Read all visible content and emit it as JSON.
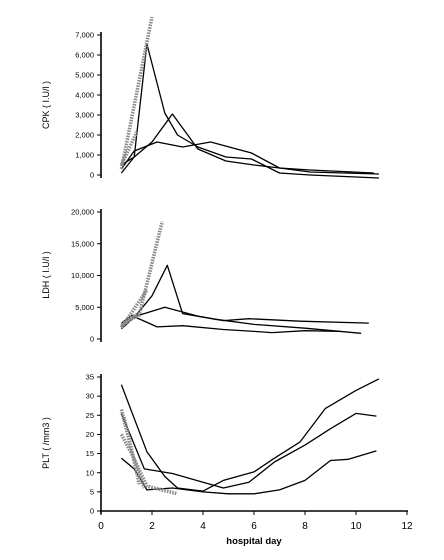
{
  "chart_data": [
    {
      "type": "line",
      "panel": "top",
      "ylabel": "CPK ( I.U/l )",
      "ylim": [
        0,
        7000
      ],
      "yticks": [
        0,
        1000,
        2000,
        3000,
        4000,
        5000,
        6000,
        7000
      ],
      "ytick_labels": [
        "0",
        "1,000",
        "2,000",
        "3,000",
        "4,000",
        "5,000",
        "6,000",
        "7,000"
      ],
      "series": [
        {
          "style": "solid",
          "points": [
            [
              0.8,
              100
            ],
            [
              1.3,
              900
            ],
            [
              1.8,
              6550
            ],
            [
              2.5,
              3100
            ],
            [
              3.0,
              2000
            ],
            [
              3.8,
              1400
            ],
            [
              4.9,
              900
            ],
            [
              5.9,
              800
            ],
            [
              7.0,
              100
            ],
            [
              8.2,
              0
            ],
            [
              10.9,
              -150
            ]
          ]
        },
        {
          "style": "solid",
          "points": [
            [
              0.8,
              500
            ],
            [
              1.3,
              900
            ],
            [
              2.0,
              1650
            ],
            [
              2.8,
              3050
            ],
            [
              3.8,
              1300
            ],
            [
              4.9,
              700
            ],
            [
              6.0,
              500
            ],
            [
              7.0,
              350
            ],
            [
              8.2,
              250
            ],
            [
              10.7,
              100
            ]
          ]
        },
        {
          "style": "solid",
          "points": [
            [
              0.8,
              300
            ],
            [
              1.3,
              1200
            ],
            [
              2.2,
              1650
            ],
            [
              3.2,
              1400
            ],
            [
              4.3,
              1650
            ],
            [
              5.9,
              1100
            ],
            [
              7.0,
              350
            ],
            [
              8.2,
              150
            ],
            [
              10.9,
              50
            ]
          ]
        },
        {
          "style": "hatched",
          "points": [
            [
              0.8,
              500
            ],
            [
              1.4,
              2150
            ]
          ]
        },
        {
          "style": "hatched",
          "points": [
            [
              0.8,
              300
            ],
            [
              2.0,
              7900
            ]
          ]
        }
      ]
    },
    {
      "type": "line",
      "panel": "middle",
      "ylabel": "LDH ( I.U/l )",
      "ylim": [
        0,
        20000
      ],
      "yticks": [
        0,
        5000,
        10000,
        15000,
        20000
      ],
      "ytick_labels": [
        "0",
        "5,000",
        "10,000",
        "15,000",
        "20,000"
      ],
      "series": [
        {
          "style": "solid",
          "points": [
            [
              0.8,
              1600
            ],
            [
              1.3,
              3400
            ],
            [
              2.0,
              6800
            ],
            [
              2.6,
              11600
            ],
            [
              3.2,
              4000
            ],
            [
              4.5,
              3100
            ],
            [
              6.0,
              2300
            ],
            [
              8.0,
              1700
            ],
            [
              10.2,
              900
            ]
          ]
        },
        {
          "style": "solid",
          "points": [
            [
              0.8,
              2000
            ],
            [
              1.3,
              3500
            ],
            [
              2.5,
              5000
            ],
            [
              3.8,
              3600
            ],
            [
              4.8,
              2900
            ],
            [
              5.8,
              3200
            ],
            [
              7.8,
              2800
            ],
            [
              10.5,
              2500
            ]
          ]
        },
        {
          "style": "solid",
          "points": [
            [
              0.8,
              2500
            ],
            [
              1.2,
              3700
            ],
            [
              2.2,
              1900
            ],
            [
              3.2,
              2100
            ],
            [
              4.8,
              1500
            ],
            [
              6.0,
              1200
            ],
            [
              6.7,
              1000
            ],
            [
              8.0,
              1300
            ],
            [
              9.4,
              1200
            ]
          ]
        },
        {
          "style": "hatched",
          "points": [
            [
              0.8,
              2300
            ],
            [
              1.5,
              3800
            ],
            [
              2.4,
              18500
            ]
          ]
        },
        {
          "style": "hatched",
          "points": [
            [
              0.8,
              1800
            ],
            [
              1.8,
              7700
            ]
          ]
        },
        {
          "style": "hatched",
          "points": [
            [
              0.8,
              2000
            ],
            [
              1.4,
              3900
            ]
          ]
        }
      ]
    },
    {
      "type": "line",
      "panel": "bottom",
      "ylabel": "PLT ( /mm3 )",
      "xlabel": "hospital day",
      "xlim": [
        0,
        12
      ],
      "xticks": [
        0,
        2,
        4,
        6,
        8,
        10,
        12
      ],
      "xtick_labels": [
        "0",
        "2",
        "4",
        "6",
        "8",
        "10",
        "12"
      ],
      "ylim": [
        0,
        35
      ],
      "yticks": [
        0,
        5,
        10,
        15,
        20,
        25,
        30,
        35
      ],
      "ytick_labels": [
        "0",
        "5",
        "10",
        "15",
        "20",
        "25",
        "30",
        "35"
      ],
      "series": [
        {
          "style": "solid",
          "points": [
            [
              0.8,
              33
            ],
            [
              1.8,
              15.5
            ],
            [
              2.5,
              9
            ],
            [
              3.0,
              6
            ],
            [
              4.0,
              5.2
            ],
            [
              4.8,
              8
            ],
            [
              6.0,
              10.2
            ],
            [
              6.8,
              13.8
            ],
            [
              7.8,
              18
            ],
            [
              8.8,
              26.8
            ],
            [
              10.0,
              31.5
            ],
            [
              10.9,
              34.5
            ]
          ]
        },
        {
          "style": "solid",
          "points": [
            [
              0.8,
              25.5
            ],
            [
              1.7,
              11
            ],
            [
              2.8,
              9.8
            ],
            [
              4.0,
              7.5
            ],
            [
              4.8,
              6
            ],
            [
              5.8,
              7.5
            ],
            [
              6.8,
              12.8
            ],
            [
              8.0,
              17.2
            ],
            [
              9.0,
              21.5
            ],
            [
              10.0,
              25.5
            ],
            [
              10.8,
              24.8
            ]
          ]
        },
        {
          "style": "solid",
          "points": [
            [
              0.8,
              13.8
            ],
            [
              1.3,
              11
            ],
            [
              1.8,
              5.5
            ],
            [
              2.8,
              6
            ],
            [
              4.0,
              5
            ],
            [
              5.0,
              4.5
            ],
            [
              6.0,
              4.5
            ],
            [
              7.0,
              5.5
            ],
            [
              8.0,
              8
            ],
            [
              9.0,
              13.2
            ],
            [
              9.7,
              13.5
            ],
            [
              10.8,
              15.7
            ]
          ]
        },
        {
          "style": "hatched",
          "points": [
            [
              0.8,
              26.5
            ],
            [
              1.2,
              16
            ],
            [
              1.5,
              7
            ]
          ]
        },
        {
          "style": "hatched",
          "points": [
            [
              0.9,
              24.5
            ],
            [
              1.3,
              13
            ],
            [
              1.7,
              6
            ]
          ]
        },
        {
          "style": "hatched",
          "points": [
            [
              0.8,
              20
            ],
            [
              1.2,
              15
            ],
            [
              1.8,
              6.5
            ],
            [
              3.0,
              4.5
            ]
          ]
        }
      ]
    }
  ]
}
